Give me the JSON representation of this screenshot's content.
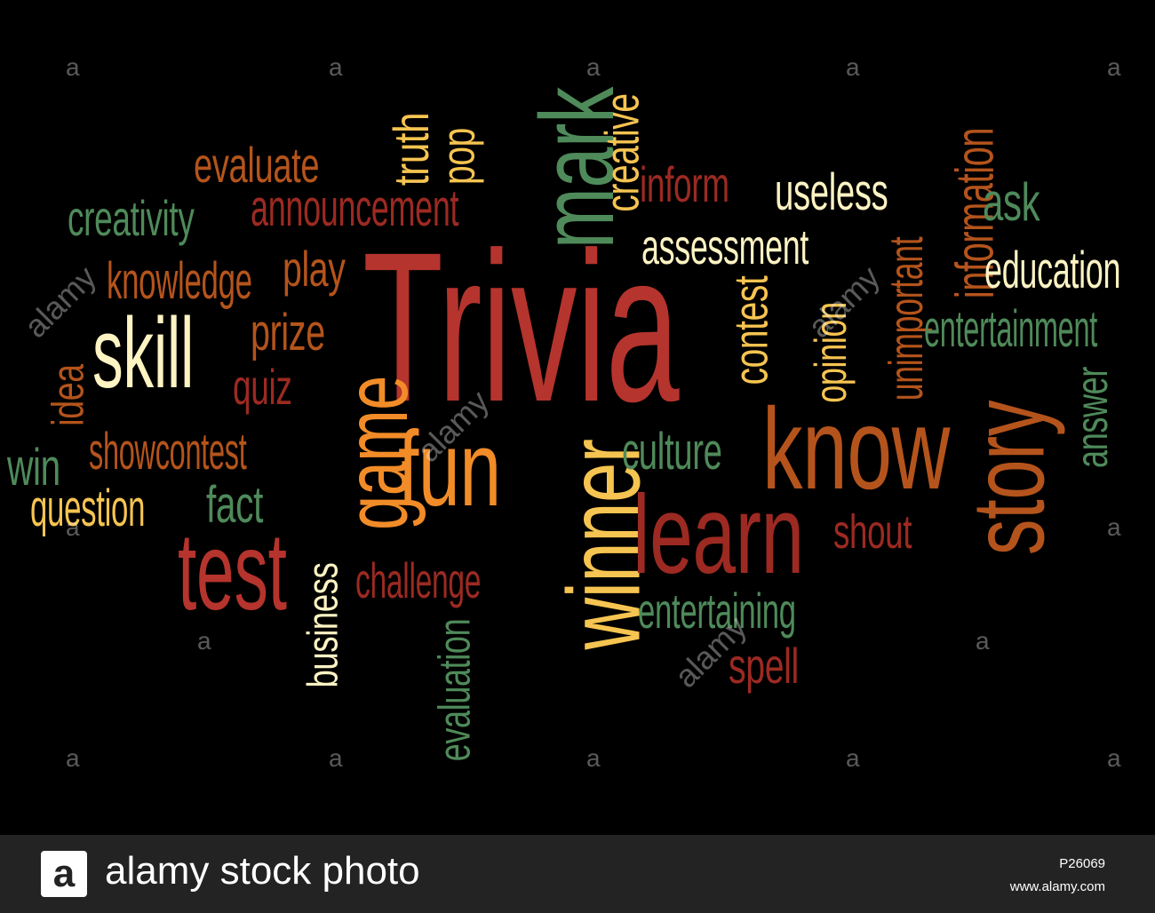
{
  "colors": {
    "red": "#b5342d",
    "darkred": "#9c2a22",
    "orange": "#f28c28",
    "brown": "#b4541c",
    "lightorange": "#f5a947",
    "cream": "#fdf3c3",
    "yellow": "#f6c451",
    "green": "#4f8a5a"
  },
  "cloud": {
    "words": [
      {
        "text": "Trivia",
        "color": "red"
      },
      {
        "text": "mark",
        "color": "green"
      },
      {
        "text": "game",
        "color": "orange"
      },
      {
        "text": "fun",
        "color": "orange"
      },
      {
        "text": "winner",
        "color": "yellow"
      },
      {
        "text": "know",
        "color": "brown"
      },
      {
        "text": "learn",
        "color": "darkred"
      },
      {
        "text": "story",
        "color": "brown"
      },
      {
        "text": "test",
        "color": "red"
      },
      {
        "text": "skill",
        "color": "cream"
      },
      {
        "text": "evaluate",
        "color": "brown"
      },
      {
        "text": "truth",
        "color": "yellow"
      },
      {
        "text": "pop",
        "color": "yellow"
      },
      {
        "text": "creative",
        "color": "yellow"
      },
      {
        "text": "inform",
        "color": "darkred"
      },
      {
        "text": "useless",
        "color": "cream"
      },
      {
        "text": "information",
        "color": "brown"
      },
      {
        "text": "ask",
        "color": "green"
      },
      {
        "text": "creativity",
        "color": "green"
      },
      {
        "text": "announcement",
        "color": "darkred"
      },
      {
        "text": "assessment",
        "color": "cream"
      },
      {
        "text": "education",
        "color": "cream"
      },
      {
        "text": "knowledge",
        "color": "brown"
      },
      {
        "text": "play",
        "color": "brown"
      },
      {
        "text": "contest",
        "color": "yellow"
      },
      {
        "text": "opinion",
        "color": "yellow"
      },
      {
        "text": "unimportant",
        "color": "brown"
      },
      {
        "text": "entertainment",
        "color": "green"
      },
      {
        "text": "prize",
        "color": "brown"
      },
      {
        "text": "quiz",
        "color": "darkred"
      },
      {
        "text": "idea",
        "color": "brown"
      },
      {
        "text": "answer",
        "color": "green"
      },
      {
        "text": "culture",
        "color": "green"
      },
      {
        "text": "win",
        "color": "green"
      },
      {
        "text": "showcontest",
        "color": "brown"
      },
      {
        "text": "question",
        "color": "yellow"
      },
      {
        "text": "fact",
        "color": "green"
      },
      {
        "text": "shout",
        "color": "darkred"
      },
      {
        "text": "challenge",
        "color": "darkred"
      },
      {
        "text": "business",
        "color": "cream"
      },
      {
        "text": "entertaining",
        "color": "green"
      },
      {
        "text": "evaluation",
        "color": "green"
      },
      {
        "text": "spell",
        "color": "darkred"
      }
    ]
  },
  "watermark": {
    "small_mark": "a",
    "word": "alamy"
  },
  "footer": {
    "logo_letter": "a",
    "brand": "alamy stock photo",
    "image_id": "P26069",
    "site": "www.alamy.com"
  }
}
